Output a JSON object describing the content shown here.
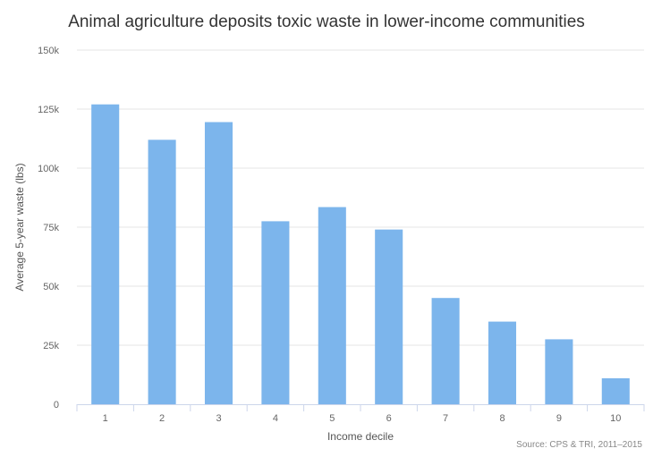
{
  "chart_data": {
    "type": "bar",
    "title": "Animal agriculture deposits toxic waste in lower-income communities",
    "xlabel": "Income decile",
    "ylabel": "Average 5-year waste (lbs)",
    "categories": [
      "1",
      "2",
      "3",
      "4",
      "5",
      "6",
      "7",
      "8",
      "9",
      "10"
    ],
    "values": [
      127000,
      112000,
      119500,
      77500,
      83500,
      74000,
      45000,
      35000,
      27500,
      11000
    ],
    "ylim": [
      0,
      150000
    ],
    "yticks": [
      0,
      25000,
      50000,
      75000,
      100000,
      125000,
      150000
    ],
    "ytick_labels": [
      "0",
      "25k",
      "50k",
      "75k",
      "100k",
      "125k",
      "150k"
    ],
    "grid": true,
    "bar_color": "#7cb5ec",
    "source": "Source: CPS & TRI, 2011–2015"
  }
}
